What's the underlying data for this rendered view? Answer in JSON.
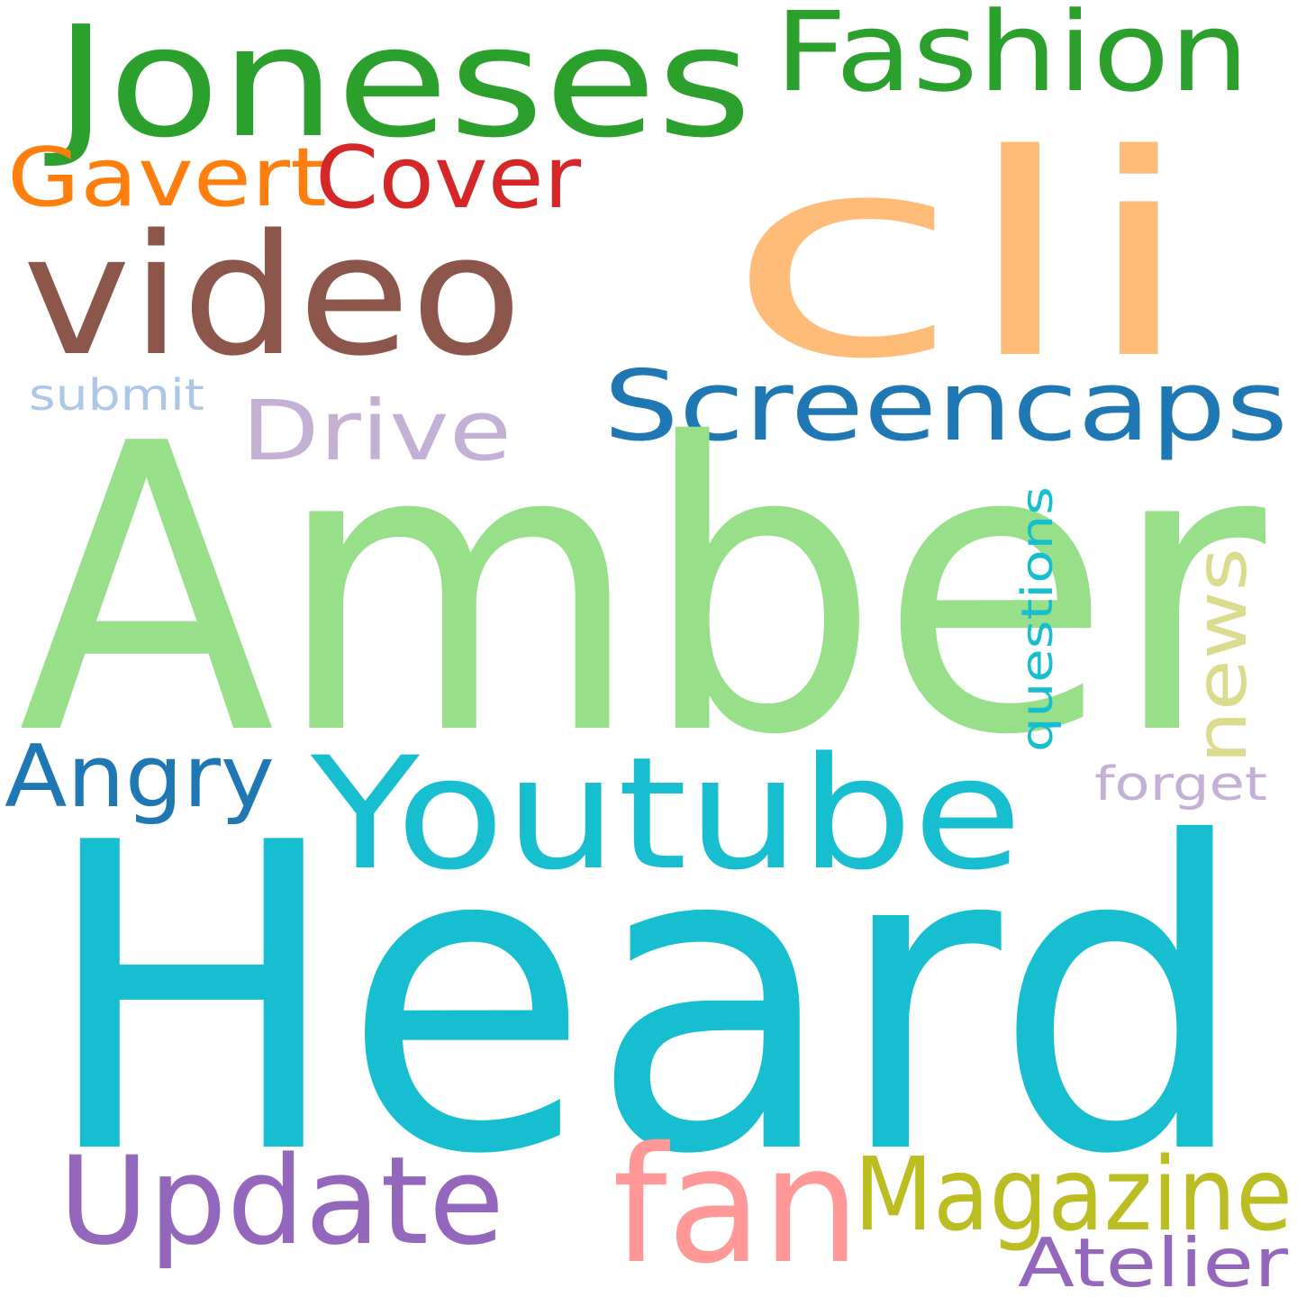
{
  "words": {
    "amber": {
      "text": "Amber",
      "color": "#98df8a"
    },
    "heard": {
      "text": "Heard",
      "color": "#17becf"
    },
    "cli": {
      "text": "cli",
      "color": "#ffbb78"
    },
    "joneses": {
      "text": "Joneses",
      "color": "#2ca02c"
    },
    "video": {
      "text": "video",
      "color": "#8c564b"
    },
    "youtube": {
      "text": "Youtube",
      "color": "#17becf"
    },
    "fashion": {
      "text": "Fashion",
      "color": "#2ca02c"
    },
    "screencaps": {
      "text": "Screencaps",
      "color": "#1f77b4"
    },
    "update": {
      "text": "Update",
      "color": "#9467bd"
    },
    "fan": {
      "text": "fan",
      "color": "#ff9896"
    },
    "magazine": {
      "text": "Magazine",
      "color": "#bcbd22"
    },
    "gavert": {
      "text": "Gavert",
      "color": "#ff7f0e"
    },
    "cover": {
      "text": "Cover",
      "color": "#d62728"
    },
    "drive": {
      "text": "Drive",
      "color": "#c5b0d5"
    },
    "angry": {
      "text": "Angry",
      "color": "#1f77b4"
    },
    "news": {
      "text": "news",
      "color": "#dbdb8d"
    },
    "atelier": {
      "text": "Atelier",
      "color": "#9467bd"
    },
    "questions": {
      "text": "questions",
      "color": "#17becf"
    },
    "submit": {
      "text": "submit",
      "color": "#aec7e8"
    },
    "forget": {
      "text": "forget",
      "color": "#c5b0d5"
    }
  }
}
